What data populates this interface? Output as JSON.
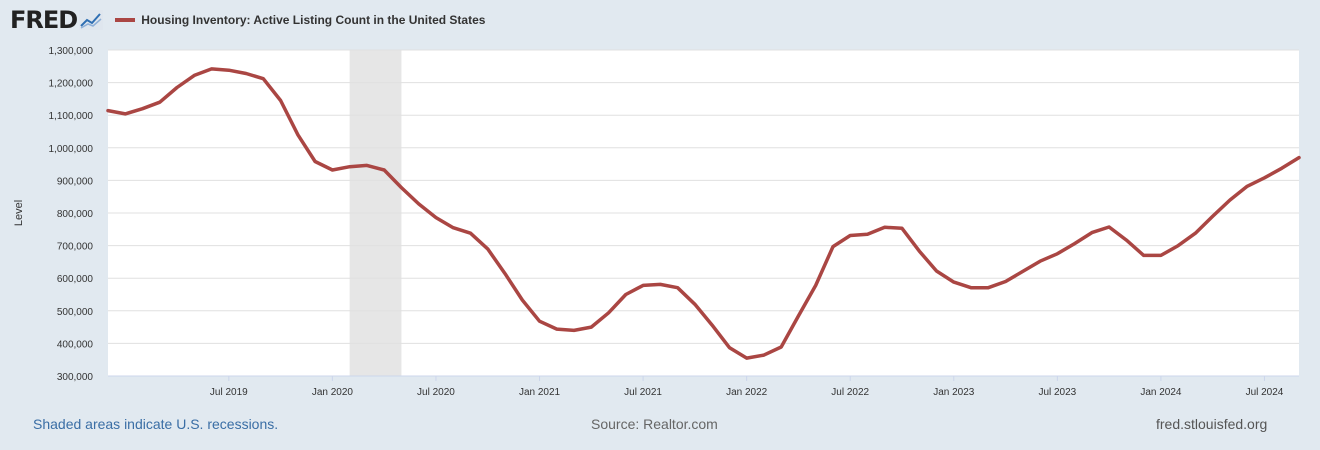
{
  "header": {
    "logo_text": "FRED",
    "logo_icon": "line-graph-icon"
  },
  "chart_data": {
    "type": "line",
    "title": "Housing Inventory: Active Listing Count in the United States",
    "ylabel": "Level",
    "ylim": [
      300000,
      1300000
    ],
    "yticks": [
      300000,
      400000,
      500000,
      600000,
      700000,
      800000,
      900000,
      1000000,
      1100000,
      1200000,
      1300000
    ],
    "ytick_labels": [
      "300,000",
      "400,000",
      "500,000",
      "600,000",
      "700,000",
      "800,000",
      "900,000",
      "1,000,000",
      "1,100,000",
      "1,200,000",
      "1,300,000"
    ],
    "x_start": "2018-12",
    "x_end": "2024-09",
    "xticks": [
      "2019-07",
      "2020-01",
      "2020-07",
      "2021-01",
      "2021-07",
      "2022-01",
      "2022-07",
      "2023-01",
      "2023-07",
      "2024-01",
      "2024-07"
    ],
    "xtick_labels": [
      "Jul 2019",
      "Jan 2020",
      "Jul 2020",
      "Jan 2021",
      "Jul 2021",
      "Jan 2022",
      "Jul 2022",
      "Jan 2023",
      "Jul 2023",
      "Jan 2024",
      "Jul 2024"
    ],
    "recessions": [
      {
        "start": "2020-02",
        "end": "2020-04"
      }
    ],
    "grid": true,
    "legend_position": "top-left",
    "series": [
      {
        "name": "Housing Inventory: Active Listing Count in the United States",
        "color": "#aa4643",
        "x": [
          "2018-12",
          "2019-01",
          "2019-02",
          "2019-03",
          "2019-04",
          "2019-05",
          "2019-06",
          "2019-07",
          "2019-08",
          "2019-09",
          "2019-10",
          "2019-11",
          "2019-12",
          "2020-01",
          "2020-02",
          "2020-03",
          "2020-04",
          "2020-05",
          "2020-06",
          "2020-07",
          "2020-08",
          "2020-09",
          "2020-10",
          "2020-11",
          "2020-12",
          "2021-01",
          "2021-02",
          "2021-03",
          "2021-04",
          "2021-05",
          "2021-06",
          "2021-07",
          "2021-08",
          "2021-09",
          "2021-10",
          "2021-11",
          "2021-12",
          "2022-01",
          "2022-02",
          "2022-03",
          "2022-04",
          "2022-05",
          "2022-06",
          "2022-07",
          "2022-08",
          "2022-09",
          "2022-10",
          "2022-11",
          "2022-12",
          "2023-01",
          "2023-02",
          "2023-03",
          "2023-04",
          "2023-05",
          "2023-06",
          "2023-07",
          "2023-08",
          "2023-09",
          "2023-10",
          "2023-11",
          "2023-12",
          "2024-01",
          "2024-02",
          "2024-03",
          "2024-04",
          "2024-05",
          "2024-06",
          "2024-07",
          "2024-08",
          "2024-09"
        ],
        "values": [
          1114000,
          1104000,
          1120000,
          1140000,
          1185000,
          1222000,
          1242000,
          1238000,
          1228000,
          1212000,
          1145000,
          1040000,
          958000,
          932000,
          942000,
          946000,
          932000,
          878000,
          828000,
          786000,
          755000,
          738000,
          690000,
          614000,
          533000,
          468000,
          444000,
          440000,
          450000,
          494000,
          550000,
          578000,
          581000,
          571000,
          520000,
          456000,
          387000,
          355000,
          364000,
          389000,
          484000,
          578000,
          697000,
          731000,
          735000,
          756000,
          753000,
          683000,
          622000,
          588000,
          571000,
          571000,
          590000,
          621000,
          652000,
          675000,
          706000,
          740000,
          757000,
          717000,
          670000,
          670000,
          700000,
          738000,
          790000,
          840000,
          882000,
          908000,
          937000,
          970000
        ]
      }
    ]
  },
  "footer": {
    "recession_note": "Shaded areas indicate U.S. recessions.",
    "source": "Source: Realtor.com",
    "site": "fred.stlouisfed.org"
  }
}
